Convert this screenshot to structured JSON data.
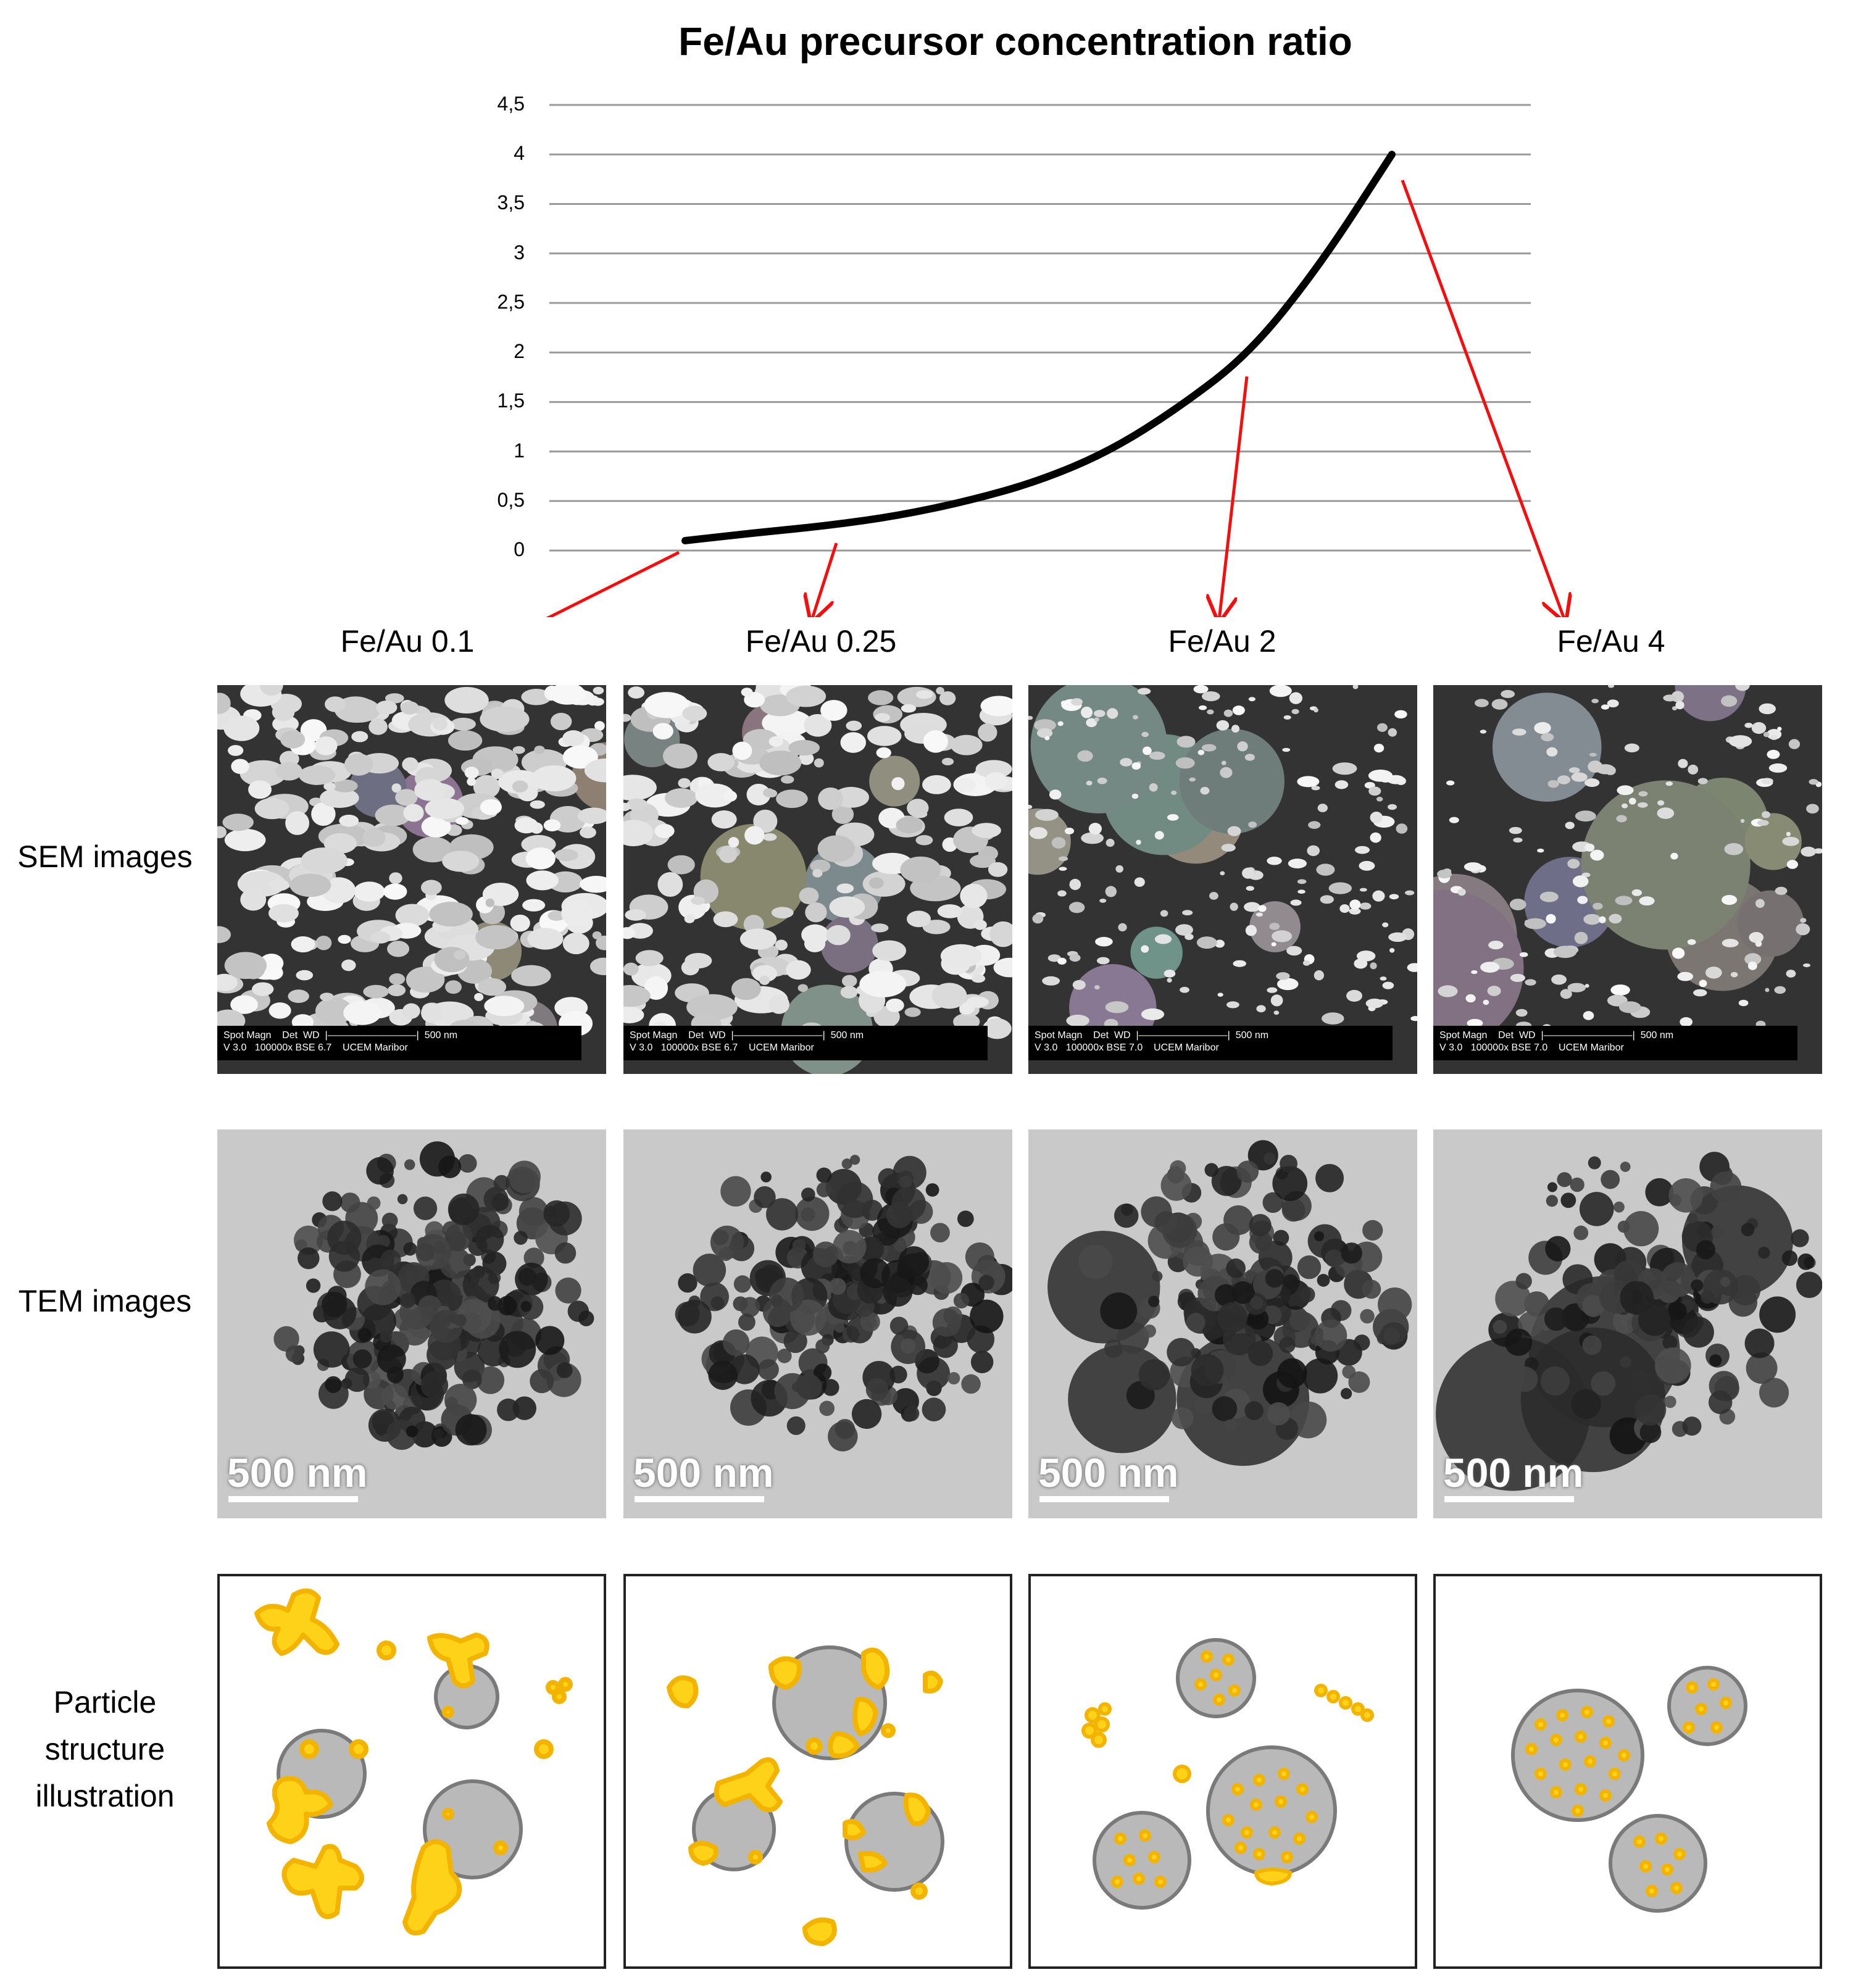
{
  "chart_data": {
    "type": "line",
    "title": "Fe/Au precursor concentration ratio",
    "yticks": [
      "0",
      "0,5",
      "1",
      "1,5",
      "2",
      "2,5",
      "3",
      "3,5",
      "4",
      "4,5"
    ],
    "ylim": [
      0,
      4.5
    ],
    "series": [
      {
        "values": [
          0.1,
          0.18,
          0.25,
          0.35,
          0.5,
          0.7,
          1.0,
          1.45,
          2.0,
          2.9,
          4.0
        ]
      }
    ]
  },
  "columns": [
    {
      "label": "Fe/Au 0.1"
    },
    {
      "label": "Fe/Au 0.25"
    },
    {
      "label": "Fe/Au 2"
    },
    {
      "label": "Fe/Au 4"
    }
  ],
  "rows": {
    "sem": "SEM images",
    "tem": "TEM images",
    "illus": "Particle structure illustration"
  },
  "sem_bars": [
    "Spot Magn    Det  WD  |—————————|  500 nm\nV 3.0   100000x BSE 6.7    UCEM Maribor",
    "Spot Magn    Det  WD  |—————————|  500 nm\nV 3.0   100000x BSE 6.7    UCEM Maribor",
    "Spot Magn    Det  WD  |—————————|  500 nm\nV 3.0   100000x BSE 7.0    UCEM Maribor",
    "Spot Magn    Det  WD  |—————————|  500 nm\nV 3.0   100000x BSE 7.0    UCEM Maribor"
  ],
  "tem_scale": "500 nm",
  "colors": {
    "arrow": "#ee1111",
    "gold": "#ffd21a",
    "gold_edge": "#f2b400",
    "core": "#b9b9b9",
    "core_edge": "#7a7a7a"
  }
}
